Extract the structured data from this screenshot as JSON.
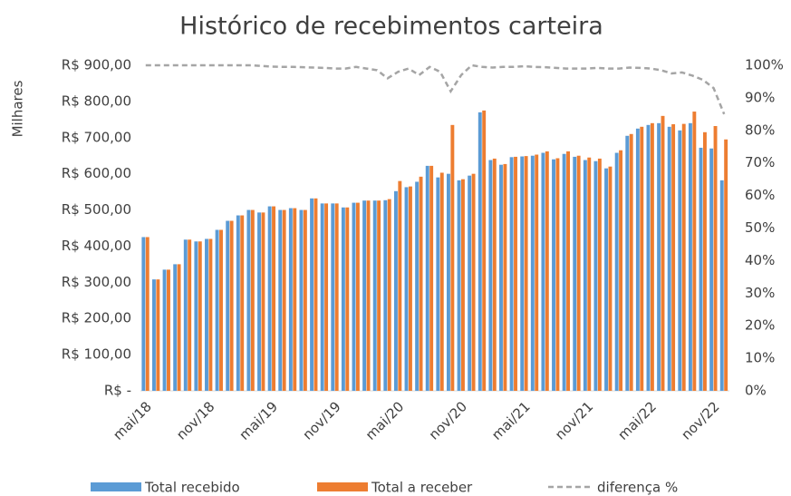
{
  "chart_data": {
    "type": "bar",
    "title": "Histórico de recebimentos carteira",
    "y_axis_label": "Milhares",
    "categories": [
      "mai/18",
      null,
      null,
      null,
      null,
      null,
      "nov/18",
      null,
      null,
      null,
      null,
      null,
      "mai/19",
      null,
      null,
      null,
      null,
      null,
      "nov/19",
      null,
      null,
      null,
      null,
      null,
      "mai/20",
      null,
      null,
      null,
      null,
      null,
      "nov/20",
      null,
      null,
      null,
      null,
      null,
      "mai/21",
      null,
      null,
      null,
      null,
      null,
      "nov/21",
      null,
      null,
      null,
      null,
      null,
      "mai/22",
      null,
      null,
      null,
      null,
      null,
      "nov/22",
      null
    ],
    "series": [
      {
        "name": "Total recebido",
        "color": "#5b9bd5",
        "values": [
          425,
          308,
          335,
          350,
          418,
          413,
          420,
          445,
          470,
          485,
          500,
          493,
          510,
          500,
          505,
          500,
          532,
          518,
          518,
          507,
          520,
          526,
          526,
          527,
          552,
          563,
          578,
          622,
          590,
          600,
          582,
          595,
          770,
          638,
          625,
          646,
          648,
          650,
          658,
          640,
          655,
          647,
          638,
          635,
          615,
          658,
          705,
          725,
          735,
          740,
          730,
          720,
          740,
          672,
          670,
          582
        ]
      },
      {
        "name": "Total a receber",
        "color": "#ed7d31",
        "values": [
          425,
          308,
          335,
          350,
          418,
          413,
          420,
          445,
          470,
          485,
          500,
          493,
          510,
          500,
          505,
          500,
          532,
          518,
          518,
          507,
          520,
          526,
          526,
          530,
          580,
          565,
          592,
          622,
          603,
          735,
          585,
          600,
          775,
          642,
          627,
          647,
          649,
          653,
          662,
          643,
          662,
          650,
          645,
          642,
          620,
          665,
          710,
          730,
          740,
          760,
          737,
          738,
          772,
          715,
          732,
          695
        ]
      },
      {
        "name": "diferença %",
        "color": "#a5a5a5",
        "type": "line",
        "axis": "y2",
        "values": [
          100,
          100,
          100,
          100,
          100,
          100,
          100,
          100,
          100,
          100,
          100,
          99.8,
          99.6,
          99.5,
          99.5,
          99.4,
          99.3,
          99.2,
          99,
          99,
          99.5,
          99,
          98.5,
          96,
          98,
          99,
          97,
          99.5,
          98,
          92,
          97,
          100,
          99.5,
          99.3,
          99.5,
          99.5,
          99.7,
          99.5,
          99.4,
          99.2,
          99,
          99,
          99,
          99.2,
          99,
          99,
          99.3,
          99.2,
          99,
          98.5,
          97.5,
          97.8,
          96.8,
          95.5,
          93,
          85
        ]
      }
    ],
    "ylim": [
      0,
      900
    ],
    "yticks": [
      {
        "value": 0,
        "label": "R$ -"
      },
      {
        "value": 100,
        "label": "R$ 100,00"
      },
      {
        "value": 200,
        "label": "R$ 200,00"
      },
      {
        "value": 300,
        "label": "R$ 300,00"
      },
      {
        "value": 400,
        "label": "R$ 400,00"
      },
      {
        "value": 500,
        "label": "R$ 500,00"
      },
      {
        "value": 600,
        "label": "R$ 600,00"
      },
      {
        "value": 700,
        "label": "R$ 700,00"
      },
      {
        "value": 800,
        "label": "R$ 800,00"
      },
      {
        "value": 900,
        "label": "R$ 900,00"
      }
    ],
    "y2lim": [
      0,
      100
    ],
    "y2ticks": [
      {
        "value": 0,
        "label": "0%"
      },
      {
        "value": 10,
        "label": "10%"
      },
      {
        "value": 20,
        "label": "20%"
      },
      {
        "value": 30,
        "label": "30%"
      },
      {
        "value": 40,
        "label": "40%"
      },
      {
        "value": 50,
        "label": "50%"
      },
      {
        "value": 60,
        "label": "60%"
      },
      {
        "value": 70,
        "label": "70%"
      },
      {
        "value": 80,
        "label": "80%"
      },
      {
        "value": 90,
        "label": "90%"
      },
      {
        "value": 100,
        "label": "100%"
      }
    ],
    "grid": false,
    "legend": "bottom"
  }
}
